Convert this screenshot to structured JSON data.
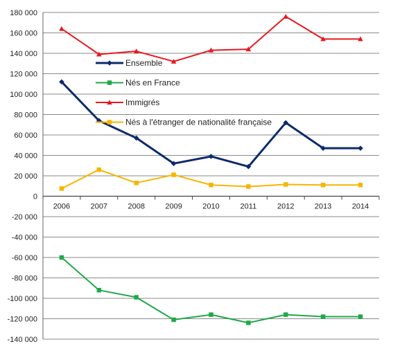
{
  "chart_data": {
    "type": "line",
    "title": "",
    "xlabel": "",
    "ylabel": "",
    "categories": [
      "2006",
      "2007",
      "2008",
      "2009",
      "2010",
      "2011",
      "2012",
      "2013",
      "2014"
    ],
    "ylim": [
      -140000,
      180000
    ],
    "y_ticks": [
      180000,
      160000,
      140000,
      120000,
      100000,
      80000,
      60000,
      40000,
      20000,
      0,
      -20000,
      -40000,
      -60000,
      -80000,
      -100000,
      -120000,
      -140000
    ],
    "y_tick_labels": [
      "180 000",
      "160 000",
      "140 000",
      "120 000",
      "100 000",
      "80 000",
      "60 000",
      "40 000",
      "20 000",
      "0",
      "-20 000",
      "-40 000",
      "-60 000",
      "-80 000",
      "-100 000",
      "-120 000",
      "-140 000"
    ],
    "grid": "horizontal",
    "legend_position": "upper-left inside plot",
    "series": [
      {
        "name": "Ensemble",
        "color": "#0d2a6b",
        "marker": "diamond",
        "values": [
          112000,
          74000,
          57000,
          32000,
          39000,
          29000,
          72000,
          47000,
          47000
        ]
      },
      {
        "name": "Nés en France",
        "color": "#1fa84a",
        "marker": "square",
        "values": [
          -60000,
          -92000,
          -99000,
          -121000,
          -116000,
          -124000,
          -116000,
          -118000,
          -118000
        ]
      },
      {
        "name": "Immigrés",
        "color": "#e8171f",
        "marker": "triangle",
        "values": [
          164000,
          139000,
          142000,
          132000,
          143000,
          144000,
          176000,
          154000,
          154000
        ]
      },
      {
        "name": "Nés à l'étranger de nationalité française",
        "color": "#f7b500",
        "marker": "square",
        "values": [
          7500,
          26000,
          13000,
          21000,
          11000,
          9500,
          11500,
          11000,
          11000
        ]
      }
    ]
  }
}
